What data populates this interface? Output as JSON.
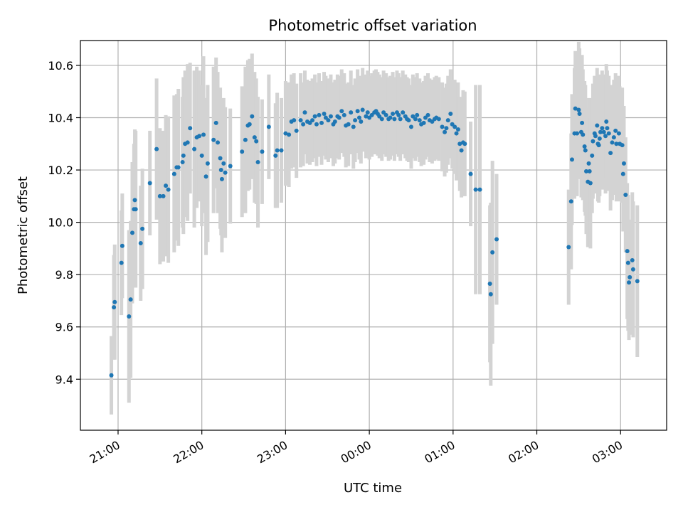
{
  "chart_data": {
    "type": "scatter",
    "title": "Photometric offset variation",
    "xlabel": "UTC time",
    "ylabel": "Photometric offset",
    "xlim_hours": [
      20.55,
      27.55
    ],
    "ylim": [
      9.205,
      10.695
    ],
    "x_ticks": [
      {
        "h": 21,
        "label": "21:00"
      },
      {
        "h": 22,
        "label": "22:00"
      },
      {
        "h": 23,
        "label": "23:00"
      },
      {
        "h": 24,
        "label": "00:00"
      },
      {
        "h": 25,
        "label": "01:00"
      },
      {
        "h": 26,
        "label": "02:00"
      },
      {
        "h": 27,
        "label": "03:00"
      }
    ],
    "y_ticks": [
      9.4,
      9.6,
      9.8,
      10.0,
      10.2,
      10.4,
      10.6
    ],
    "grid": true,
    "legend": "none",
    "marker_color": "#1f77b4",
    "errorbar_color": "#d3d3d3",
    "series": [
      {
        "points": [
          [
            20.92,
            9.415,
            0.15
          ],
          [
            20.95,
            9.675,
            0.2
          ],
          [
            20.96,
            9.695,
            0.22
          ],
          [
            21.04,
            9.845,
            0.2
          ],
          [
            21.05,
            9.91,
            0.2
          ],
          [
            21.13,
            9.64,
            0.33
          ],
          [
            21.15,
            9.705,
            0.3
          ],
          [
            21.17,
            9.96,
            0.27
          ],
          [
            21.19,
            10.05,
            0.25
          ],
          [
            21.2,
            10.085,
            0.27
          ],
          [
            21.21,
            10.05,
            0.3
          ],
          [
            21.27,
            9.92,
            0.22
          ],
          [
            21.29,
            9.975,
            0.23
          ],
          [
            21.38,
            10.15,
            0.2
          ],
          [
            21.46,
            10.28,
            0.27
          ],
          [
            21.5,
            10.1,
            0.26
          ],
          [
            21.54,
            10.1,
            0.25
          ],
          [
            21.57,
            10.14,
            0.27
          ],
          [
            21.6,
            10.125,
            0.28
          ],
          [
            21.67,
            10.185,
            0.3
          ],
          [
            21.7,
            10.21,
            0.28
          ],
          [
            21.72,
            10.21,
            0.3
          ],
          [
            21.77,
            10.23,
            0.25
          ],
          [
            21.78,
            10.255,
            0.3
          ],
          [
            21.8,
            10.3,
            0.28
          ],
          [
            21.83,
            10.305,
            0.3
          ],
          [
            21.86,
            10.36,
            0.25
          ],
          [
            21.91,
            10.28,
            0.3
          ],
          [
            21.94,
            10.325,
            0.27
          ],
          [
            21.97,
            10.33,
            0.25
          ],
          [
            22.0,
            10.255,
            0.27
          ],
          [
            22.02,
            10.335,
            0.3
          ],
          [
            22.05,
            10.175,
            0.3
          ],
          [
            22.07,
            10.225,
            0.3
          ],
          [
            22.14,
            10.315,
            0.28
          ],
          [
            22.17,
            10.38,
            0.25
          ],
          [
            22.19,
            10.305,
            0.27
          ],
          [
            22.22,
            10.245,
            0.27
          ],
          [
            22.23,
            10.2,
            0.25
          ],
          [
            22.24,
            10.165,
            0.28
          ],
          [
            22.26,
            10.225,
            0.25
          ],
          [
            22.28,
            10.19,
            0.25
          ],
          [
            22.34,
            10.215,
            0.22
          ],
          [
            22.48,
            10.27,
            0.25
          ],
          [
            22.52,
            10.315,
            0.28
          ],
          [
            22.55,
            10.37,
            0.25
          ],
          [
            22.57,
            10.375,
            0.25
          ],
          [
            22.6,
            10.405,
            0.24
          ],
          [
            22.63,
            10.325,
            0.25
          ],
          [
            22.65,
            10.31,
            0.24
          ],
          [
            22.67,
            10.23,
            0.25
          ],
          [
            22.72,
            10.27,
            0.2
          ],
          [
            22.8,
            10.365,
            0.2
          ],
          [
            22.88,
            10.255,
            0.2
          ],
          [
            22.9,
            10.275,
            0.22
          ],
          [
            22.95,
            10.275,
            0.2
          ],
          [
            23.0,
            10.34,
            0.2
          ],
          [
            23.04,
            10.335,
            0.2
          ],
          [
            23.07,
            10.385,
            0.18
          ],
          [
            23.1,
            10.39,
            0.18
          ],
          [
            23.13,
            10.35,
            0.18
          ],
          [
            23.18,
            10.39,
            0.18
          ],
          [
            23.21,
            10.375,
            0.16
          ],
          [
            23.23,
            10.42,
            0.16
          ],
          [
            23.26,
            10.385,
            0.16
          ],
          [
            23.29,
            10.38,
            0.16
          ],
          [
            23.32,
            10.39,
            0.16
          ],
          [
            23.35,
            10.405,
            0.16
          ],
          [
            23.37,
            10.375,
            0.16
          ],
          [
            23.4,
            10.41,
            0.16
          ],
          [
            23.43,
            10.38,
            0.16
          ],
          [
            23.46,
            10.415,
            0.16
          ],
          [
            23.48,
            10.4,
            0.16
          ],
          [
            23.51,
            10.39,
            0.16
          ],
          [
            23.54,
            10.405,
            0.16
          ],
          [
            23.57,
            10.375,
            0.16
          ],
          [
            23.59,
            10.385,
            0.16
          ],
          [
            23.62,
            10.405,
            0.16
          ],
          [
            23.64,
            10.4,
            0.16
          ],
          [
            23.67,
            10.425,
            0.16
          ],
          [
            23.7,
            10.41,
            0.16
          ],
          [
            23.72,
            10.37,
            0.16
          ],
          [
            23.75,
            10.375,
            0.16
          ],
          [
            23.78,
            10.42,
            0.16
          ],
          [
            23.81,
            10.365,
            0.16
          ],
          [
            23.83,
            10.39,
            0.16
          ],
          [
            23.86,
            10.425,
            0.16
          ],
          [
            23.88,
            10.4,
            0.16
          ],
          [
            23.9,
            10.385,
            0.16
          ],
          [
            23.92,
            10.43,
            0.16
          ],
          [
            23.96,
            10.405,
            0.16
          ],
          [
            23.98,
            10.42,
            0.16
          ],
          [
            24.0,
            10.4,
            0.16
          ],
          [
            24.03,
            10.41,
            0.16
          ],
          [
            24.06,
            10.42,
            0.16
          ],
          [
            24.08,
            10.425,
            0.16
          ],
          [
            24.1,
            10.415,
            0.16
          ],
          [
            24.12,
            10.405,
            0.16
          ],
          [
            24.15,
            10.395,
            0.16
          ],
          [
            24.17,
            10.42,
            0.16
          ],
          [
            24.2,
            10.41,
            0.16
          ],
          [
            24.23,
            10.395,
            0.16
          ],
          [
            24.25,
            10.4,
            0.16
          ],
          [
            24.28,
            10.415,
            0.16
          ],
          [
            24.3,
            10.395,
            0.16
          ],
          [
            24.33,
            10.42,
            0.16
          ],
          [
            24.35,
            10.41,
            0.16
          ],
          [
            24.37,
            10.395,
            0.16
          ],
          [
            24.4,
            10.42,
            0.16
          ],
          [
            24.43,
            10.405,
            0.16
          ],
          [
            24.45,
            10.395,
            0.16
          ],
          [
            24.47,
            10.39,
            0.16
          ],
          [
            24.5,
            10.365,
            0.16
          ],
          [
            24.52,
            10.405,
            0.16
          ],
          [
            24.55,
            10.395,
            0.16
          ],
          [
            24.57,
            10.41,
            0.16
          ],
          [
            24.6,
            10.39,
            0.16
          ],
          [
            24.62,
            10.375,
            0.16
          ],
          [
            24.65,
            10.38,
            0.16
          ],
          [
            24.67,
            10.4,
            0.16
          ],
          [
            24.7,
            10.41,
            0.16
          ],
          [
            24.72,
            10.39,
            0.16
          ],
          [
            24.75,
            10.385,
            0.16
          ],
          [
            24.78,
            10.395,
            0.16
          ],
          [
            24.8,
            10.4,
            0.16
          ],
          [
            24.83,
            10.395,
            0.16
          ],
          [
            24.87,
            10.365,
            0.17
          ],
          [
            24.9,
            10.345,
            0.17
          ],
          [
            24.92,
            10.36,
            0.17
          ],
          [
            24.94,
            10.39,
            0.17
          ],
          [
            24.97,
            10.415,
            0.17
          ],
          [
            24.99,
            10.375,
            0.17
          ],
          [
            25.02,
            10.365,
            0.18
          ],
          [
            25.04,
            10.34,
            0.18
          ],
          [
            25.06,
            10.355,
            0.18
          ],
          [
            25.08,
            10.3,
            0.18
          ],
          [
            25.1,
            10.275,
            0.18
          ],
          [
            25.12,
            10.305,
            0.2
          ],
          [
            25.14,
            10.3,
            0.2
          ],
          [
            25.21,
            10.185,
            0.2
          ],
          [
            25.27,
            10.125,
            0.4
          ],
          [
            25.32,
            10.125,
            0.4
          ],
          [
            25.44,
            9.765,
            0.3
          ],
          [
            25.45,
            9.725,
            0.35
          ],
          [
            25.47,
            9.885,
            0.35
          ],
          [
            25.52,
            9.935,
            0.25
          ],
          [
            26.38,
            9.905,
            0.22
          ],
          [
            26.41,
            10.08,
            0.26
          ],
          [
            26.42,
            10.24,
            0.25
          ],
          [
            26.45,
            10.34,
            0.25
          ],
          [
            26.46,
            10.435,
            0.22
          ],
          [
            26.48,
            10.34,
            0.24
          ],
          [
            26.5,
            10.43,
            0.26
          ],
          [
            26.51,
            10.415,
            0.25
          ],
          [
            26.53,
            10.345,
            0.25
          ],
          [
            26.54,
            10.38,
            0.26
          ],
          [
            26.55,
            10.335,
            0.25
          ],
          [
            26.57,
            10.29,
            0.25
          ],
          [
            26.58,
            10.275,
            0.25
          ],
          [
            26.59,
            10.195,
            0.24
          ],
          [
            26.61,
            10.155,
            0.25
          ],
          [
            26.62,
            10.225,
            0.25
          ],
          [
            26.63,
            10.195,
            0.25
          ],
          [
            26.64,
            10.15,
            0.25
          ],
          [
            26.66,
            10.255,
            0.22
          ],
          [
            26.67,
            10.31,
            0.22
          ],
          [
            26.69,
            10.34,
            0.22
          ],
          [
            26.7,
            10.33,
            0.22
          ],
          [
            26.72,
            10.37,
            0.22
          ],
          [
            26.73,
            10.3,
            0.22
          ],
          [
            26.74,
            10.295,
            0.22
          ],
          [
            26.75,
            10.32,
            0.22
          ],
          [
            26.76,
            10.345,
            0.22
          ],
          [
            26.78,
            10.36,
            0.22
          ],
          [
            26.8,
            10.345,
            0.22
          ],
          [
            26.82,
            10.33,
            0.22
          ],
          [
            26.83,
            10.385,
            0.22
          ],
          [
            26.84,
            10.36,
            0.22
          ],
          [
            26.86,
            10.34,
            0.22
          ],
          [
            26.88,
            10.265,
            0.22
          ],
          [
            26.9,
            10.305,
            0.22
          ],
          [
            26.92,
            10.325,
            0.22
          ],
          [
            26.94,
            10.35,
            0.22
          ],
          [
            26.95,
            10.3,
            0.22
          ],
          [
            26.98,
            10.34,
            0.22
          ],
          [
            26.99,
            10.3,
            0.22
          ],
          [
            27.02,
            10.295,
            0.22
          ],
          [
            27.03,
            10.185,
            0.22
          ],
          [
            27.04,
            10.225,
            0.22
          ],
          [
            27.06,
            10.105,
            0.22
          ],
          [
            27.08,
            9.89,
            0.26
          ],
          [
            27.09,
            9.845,
            0.26
          ],
          [
            27.1,
            9.77,
            0.22
          ],
          [
            27.11,
            9.79,
            0.22
          ],
          [
            27.14,
            9.855,
            0.26
          ],
          [
            27.15,
            9.82,
            0.26
          ],
          [
            27.2,
            9.775,
            0.29
          ]
        ]
      }
    ]
  }
}
